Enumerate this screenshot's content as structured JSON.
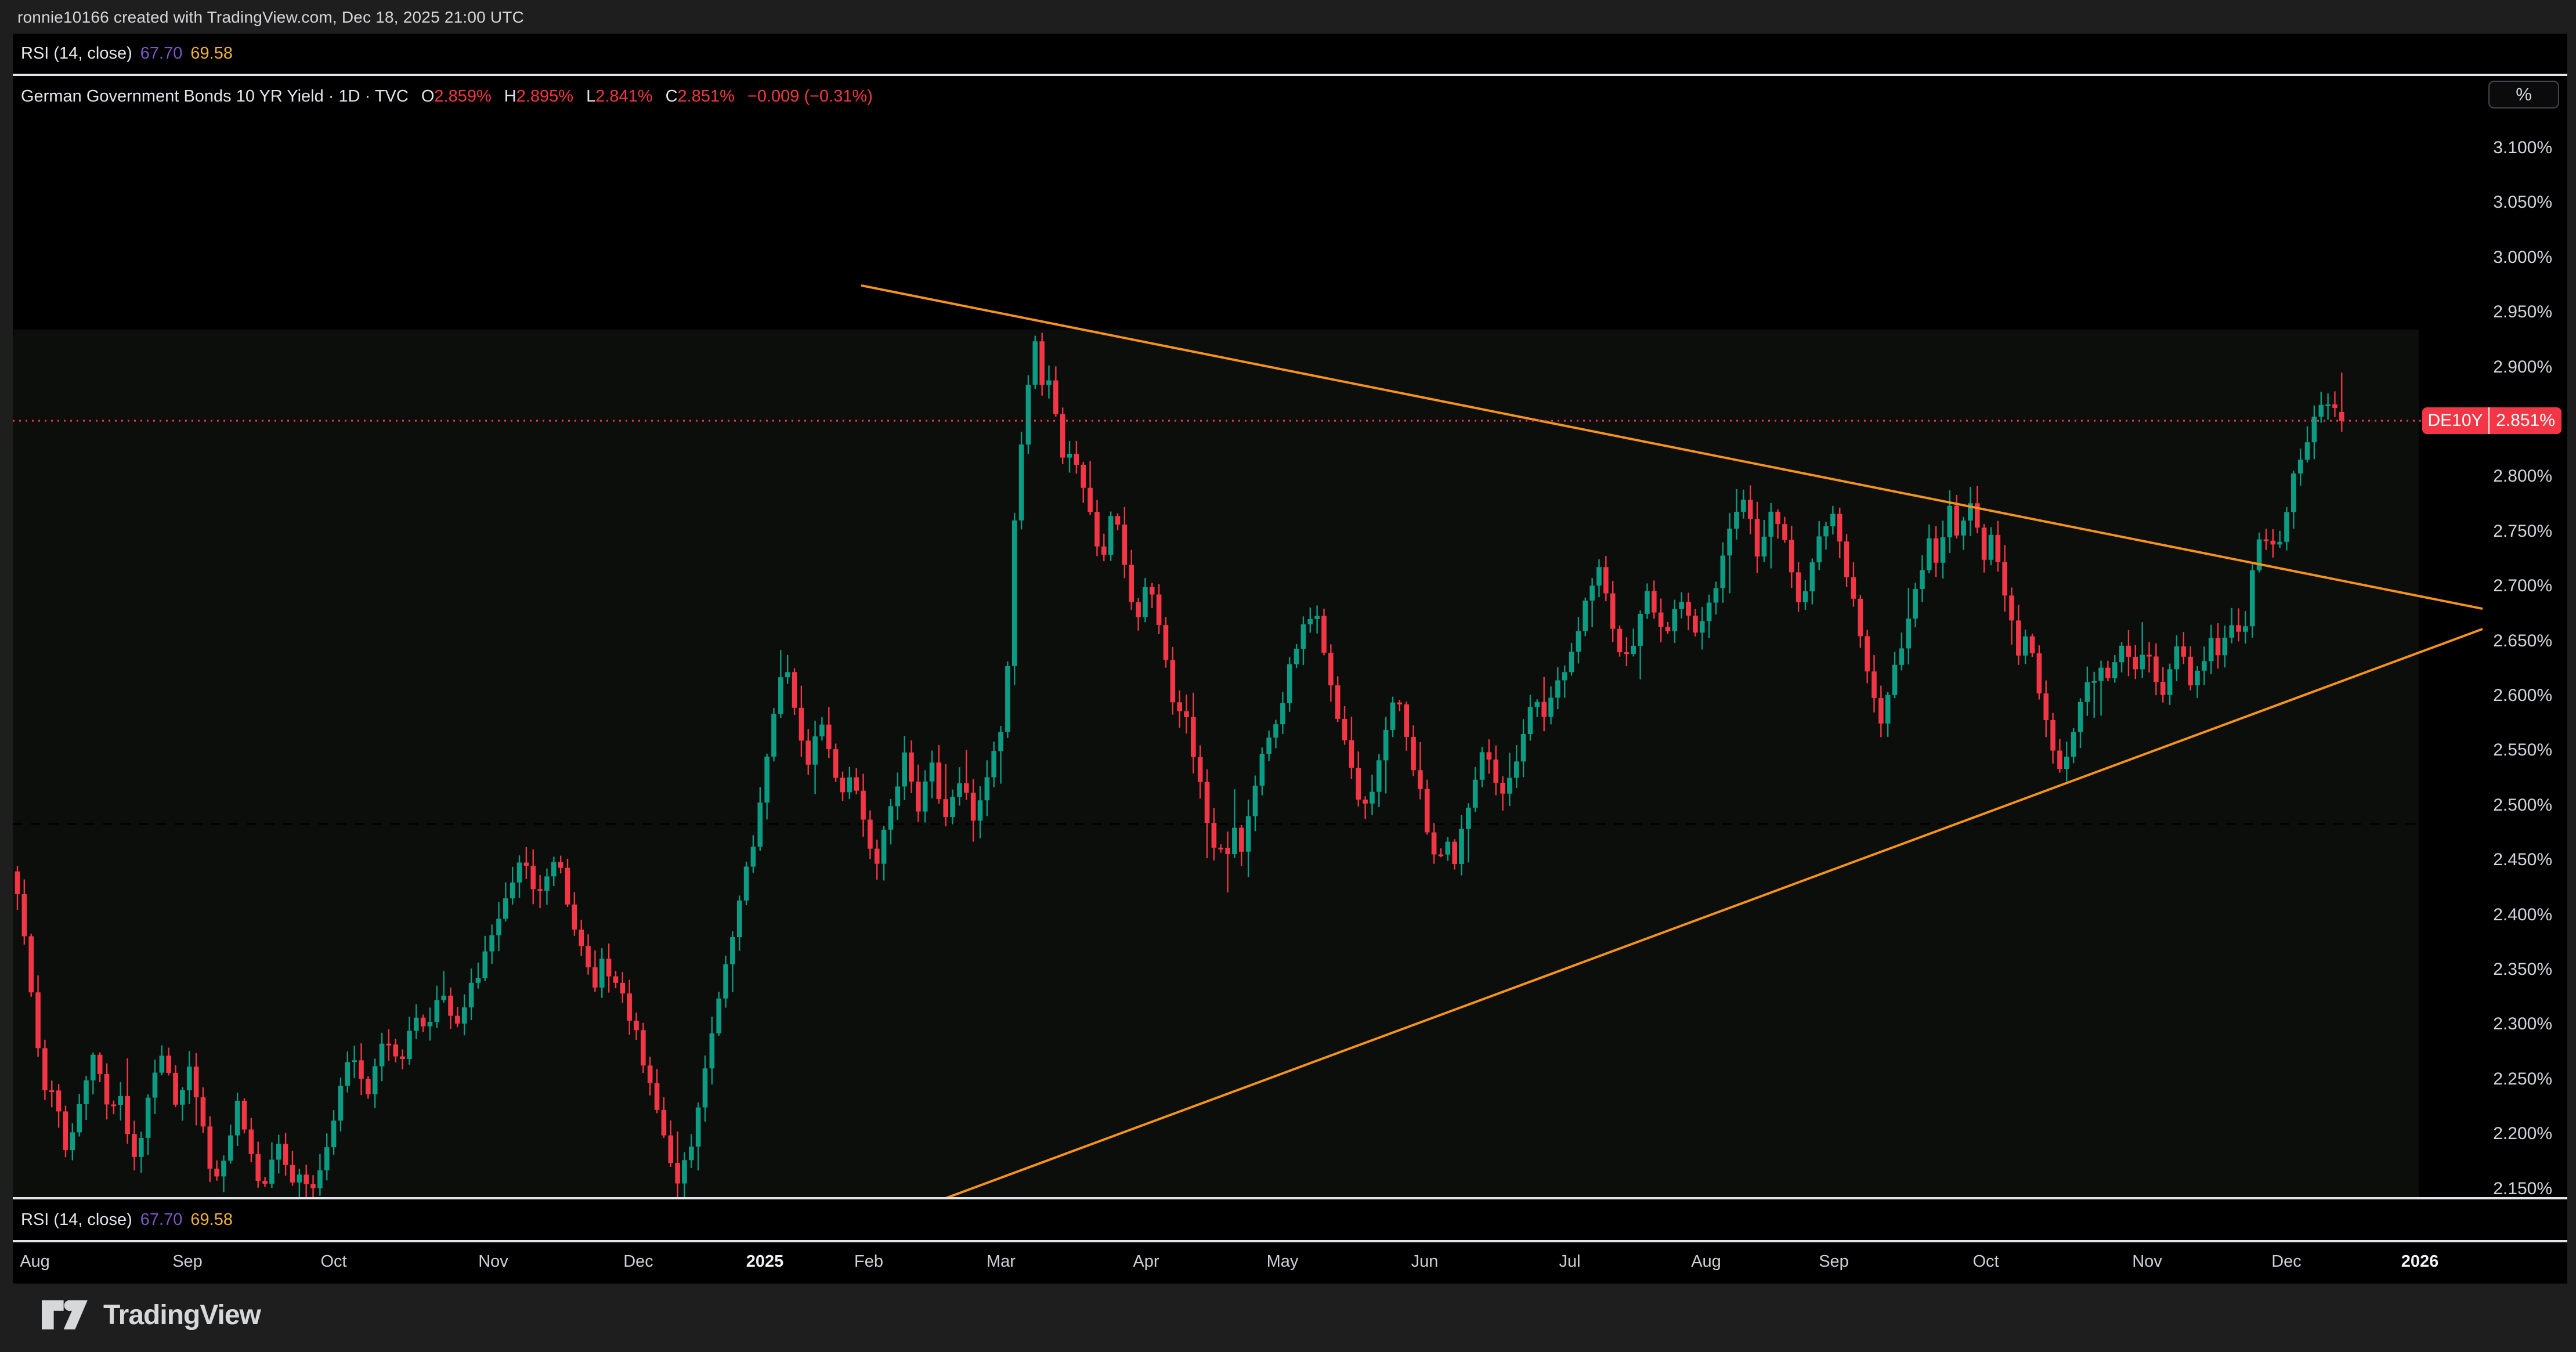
{
  "header": {
    "byline": "ronnie10166 created with TradingView.com, Dec 18, 2025 21:00 UTC"
  },
  "rsi": {
    "label": "RSI (14, close)",
    "value1": "67.70",
    "value2": "69.58"
  },
  "legend": {
    "title": "German Government Bonds 10 YR Yield · 1D · TVC",
    "label_o": "O",
    "open": "2.859%",
    "label_h": "H",
    "high": "2.895%",
    "label_l": "L",
    "low": "2.841%",
    "label_c": "C",
    "close": "2.851%",
    "change": "−0.009 (−0.31%)"
  },
  "price_label": {
    "symbol": "DE10Y",
    "value": "2.851%"
  },
  "y_axis": {
    "unit": "%",
    "ticks": [
      "3.100%",
      "3.050%",
      "3.000%",
      "2.950%",
      "2.900%",
      "2.800%",
      "2.750%",
      "2.700%",
      "2.650%",
      "2.600%",
      "2.550%",
      "2.500%",
      "2.450%",
      "2.400%",
      "2.350%",
      "2.300%",
      "2.250%",
      "2.200%",
      "2.150%"
    ]
  },
  "footer": {
    "logo_text": "TradingView"
  },
  "chart_data": {
    "type": "candlestick",
    "title": "German Government Bonds 10 YR Yield",
    "interval": "1D",
    "exchange": "TVC",
    "unit": "%",
    "ylim": [
      2.135,
      3.163
    ],
    "grid": false,
    "legend_position": "top-left",
    "last_bar": {
      "open": 2.859,
      "high": 2.895,
      "low": 2.841,
      "close": 2.851,
      "change": -0.009,
      "change_pct": -0.31
    },
    "current_price": 2.851,
    "dashed_level": 2.483,
    "colors": {
      "up": "#0c9c83",
      "down": "#f23645",
      "trendline": "#f7931a",
      "price_line": "#f23645",
      "rsi_value": "#7e57c2",
      "rsi_ma_value": "#f0b232",
      "badge_bg": "#f23645",
      "pane_bg": "#000000",
      "band_bg": "#0b0e0b",
      "frame_bg": "#1e1e1e"
    },
    "x_axis": {
      "labels": [
        {
          "t": "Aug",
          "x": 60
        },
        {
          "t": "Sep",
          "x": 323
        },
        {
          "t": "Oct",
          "x": 575
        },
        {
          "t": "Nov",
          "x": 850
        },
        {
          "t": "Dec",
          "x": 1100
        },
        {
          "t": "2025",
          "x": 1318,
          "year": true
        },
        {
          "t": "Feb",
          "x": 1497
        },
        {
          "t": "Mar",
          "x": 1725
        },
        {
          "t": "Apr",
          "x": 1975
        },
        {
          "t": "May",
          "x": 2210
        },
        {
          "t": "Jun",
          "x": 2455
        },
        {
          "t": "Jul",
          "x": 2705
        },
        {
          "t": "Aug",
          "x": 2940
        },
        {
          "t": "Sep",
          "x": 3160
        },
        {
          "t": "Oct",
          "x": 3422
        },
        {
          "t": "Nov",
          "x": 3700
        },
        {
          "t": "Dec",
          "x": 3940
        },
        {
          "t": "2026",
          "x": 4170,
          "year": true
        }
      ]
    },
    "trendlines": [
      {
        "x1": 1484,
        "p1": 2.9745,
        "x2": 4278,
        "p2": 2.6794
      },
      {
        "x1": 1616,
        "p1": 2.1387,
        "x2": 4278,
        "p2": 2.6609
      }
    ],
    "anchors": [
      [
        18,
        2.44
      ],
      [
        30,
        2.415
      ],
      [
        42,
        2.38
      ],
      [
        55,
        2.33
      ],
      [
        68,
        2.27
      ],
      [
        80,
        2.225
      ],
      [
        92,
        2.25
      ],
      [
        105,
        2.21
      ],
      [
        118,
        2.18
      ],
      [
        132,
        2.22
      ],
      [
        146,
        2.245
      ],
      [
        160,
        2.27
      ],
      [
        175,
        2.245
      ],
      [
        190,
        2.215
      ],
      [
        205,
        2.245
      ],
      [
        220,
        2.2
      ],
      [
        235,
        2.175
      ],
      [
        250,
        2.215
      ],
      [
        265,
        2.25
      ],
      [
        280,
        2.27
      ],
      [
        295,
        2.245
      ],
      [
        310,
        2.22
      ],
      [
        325,
        2.265
      ],
      [
        340,
        2.23
      ],
      [
        355,
        2.19
      ],
      [
        368,
        2.155
      ],
      [
        382,
        2.17
      ],
      [
        396,
        2.2
      ],
      [
        410,
        2.225
      ],
      [
        424,
        2.195
      ],
      [
        438,
        2.17
      ],
      [
        452,
        2.15
      ],
      [
        466,
        2.175
      ],
      [
        480,
        2.195
      ],
      [
        494,
        2.17
      ],
      [
        508,
        2.15
      ],
      [
        522,
        2.165
      ],
      [
        536,
        2.145
      ],
      [
        550,
        2.17
      ],
      [
        564,
        2.19
      ],
      [
        578,
        2.22
      ],
      [
        592,
        2.25
      ],
      [
        606,
        2.275
      ],
      [
        620,
        2.255
      ],
      [
        634,
        2.235
      ],
      [
        648,
        2.265
      ],
      [
        662,
        2.295
      ],
      [
        676,
        2.275
      ],
      [
        690,
        2.255
      ],
      [
        704,
        2.285
      ],
      [
        718,
        2.31
      ],
      [
        732,
        2.29
      ],
      [
        746,
        2.315
      ],
      [
        760,
        2.33
      ],
      [
        774,
        2.31
      ],
      [
        788,
        2.295
      ],
      [
        802,
        2.32
      ],
      [
        816,
        2.34
      ],
      [
        830,
        2.355
      ],
      [
        844,
        2.375
      ],
      [
        858,
        2.4
      ],
      [
        872,
        2.42
      ],
      [
        886,
        2.44
      ],
      [
        900,
        2.455
      ],
      [
        914,
        2.435
      ],
      [
        928,
        2.415
      ],
      [
        942,
        2.44
      ],
      [
        956,
        2.455
      ],
      [
        970,
        2.43
      ],
      [
        984,
        2.4
      ],
      [
        998,
        2.375
      ],
      [
        1012,
        2.35
      ],
      [
        1026,
        2.335
      ],
      [
        1040,
        2.36
      ],
      [
        1054,
        2.345
      ],
      [
        1068,
        2.33
      ],
      [
        1082,
        2.315
      ],
      [
        1096,
        2.29
      ],
      [
        1110,
        2.265
      ],
      [
        1124,
        2.235
      ],
      [
        1138,
        2.205
      ],
      [
        1152,
        2.175
      ],
      [
        1166,
        2.15
      ],
      [
        1180,
        2.17
      ],
      [
        1194,
        2.2
      ],
      [
        1208,
        2.24
      ],
      [
        1222,
        2.28
      ],
      [
        1236,
        2.315
      ],
      [
        1250,
        2.35
      ],
      [
        1264,
        2.385
      ],
      [
        1278,
        2.42
      ],
      [
        1292,
        2.45
      ],
      [
        1306,
        2.485
      ],
      [
        1318,
        2.53
      ],
      [
        1330,
        2.575
      ],
      [
        1342,
        2.615
      ],
      [
        1354,
        2.635
      ],
      [
        1366,
        2.6
      ],
      [
        1378,
        2.565
      ],
      [
        1390,
        2.535
      ],
      [
        1402,
        2.555
      ],
      [
        1414,
        2.575
      ],
      [
        1426,
        2.555
      ],
      [
        1438,
        2.53
      ],
      [
        1450,
        2.51
      ],
      [
        1462,
        2.53
      ],
      [
        1474,
        2.515
      ],
      [
        1486,
        2.49
      ],
      [
        1498,
        2.465
      ],
      [
        1510,
        2.445
      ],
      [
        1522,
        2.47
      ],
      [
        1534,
        2.495
      ],
      [
        1546,
        2.52
      ],
      [
        1558,
        2.545
      ],
      [
        1570,
        2.52
      ],
      [
        1582,
        2.495
      ],
      [
        1594,
        2.515
      ],
      [
        1606,
        2.535
      ],
      [
        1618,
        2.51
      ],
      [
        1630,
        2.485
      ],
      [
        1642,
        2.505
      ],
      [
        1654,
        2.525
      ],
      [
        1666,
        2.505
      ],
      [
        1678,
        2.485
      ],
      [
        1690,
        2.505
      ],
      [
        1702,
        2.525
      ],
      [
        1714,
        2.545
      ],
      [
        1726,
        2.565
      ],
      [
        1736,
        2.615
      ],
      [
        1744,
        2.72
      ],
      [
        1752,
        2.8
      ],
      [
        1760,
        2.83
      ],
      [
        1768,
        2.865
      ],
      [
        1776,
        2.895
      ],
      [
        1784,
        2.925
      ],
      [
        1792,
        2.9
      ],
      [
        1800,
        2.875
      ],
      [
        1808,
        2.89
      ],
      [
        1816,
        2.87
      ],
      [
        1824,
        2.84
      ],
      [
        1832,
        2.815
      ],
      [
        1840,
        2.835
      ],
      [
        1848,
        2.8
      ],
      [
        1858,
        2.815
      ],
      [
        1868,
        2.79
      ],
      [
        1878,
        2.765
      ],
      [
        1888,
        2.74
      ],
      [
        1898,
        2.715
      ],
      [
        1908,
        2.745
      ],
      [
        1918,
        2.77
      ],
      [
        1928,
        2.745
      ],
      [
        1938,
        2.715
      ],
      [
        1948,
        2.685
      ],
      [
        1958,
        2.66
      ],
      [
        1968,
        2.685
      ],
      [
        1978,
        2.71
      ],
      [
        1988,
        2.69
      ],
      [
        1998,
        2.665
      ],
      [
        2008,
        2.635
      ],
      [
        2018,
        2.6
      ],
      [
        2028,
        2.575
      ],
      [
        2038,
        2.6
      ],
      [
        2048,
        2.57
      ],
      [
        2058,
        2.545
      ],
      [
        2068,
        2.52
      ],
      [
        2078,
        2.49
      ],
      [
        2088,
        2.465
      ],
      [
        2098,
        2.445
      ],
      [
        2108,
        2.47
      ],
      [
        2118,
        2.45
      ],
      [
        2128,
        2.475
      ],
      [
        2138,
        2.455
      ],
      [
        2148,
        2.48
      ],
      [
        2158,
        2.51
      ],
      [
        2170,
        2.535
      ],
      [
        2184,
        2.555
      ],
      [
        2198,
        2.575
      ],
      [
        2212,
        2.6
      ],
      [
        2226,
        2.63
      ],
      [
        2240,
        2.655
      ],
      [
        2254,
        2.67
      ],
      [
        2266,
        2.675
      ],
      [
        2280,
        2.645
      ],
      [
        2294,
        2.61
      ],
      [
        2308,
        2.575
      ],
      [
        2322,
        2.545
      ],
      [
        2336,
        2.515
      ],
      [
        2350,
        2.49
      ],
      [
        2364,
        2.515
      ],
      [
        2378,
        2.545
      ],
      [
        2392,
        2.575
      ],
      [
        2406,
        2.6
      ],
      [
        2420,
        2.57
      ],
      [
        2434,
        2.54
      ],
      [
        2448,
        2.51
      ],
      [
        2462,
        2.475
      ],
      [
        2476,
        2.445
      ],
      [
        2490,
        2.47
      ],
      [
        2504,
        2.445
      ],
      [
        2518,
        2.475
      ],
      [
        2532,
        2.505
      ],
      [
        2546,
        2.53
      ],
      [
        2560,
        2.55
      ],
      [
        2574,
        2.525
      ],
      [
        2588,
        2.505
      ],
      [
        2602,
        2.53
      ],
      [
        2616,
        2.55
      ],
      [
        2630,
        2.575
      ],
      [
        2644,
        2.6
      ],
      [
        2658,
        2.58
      ],
      [
        2672,
        2.6
      ],
      [
        2686,
        2.615
      ],
      [
        2700,
        2.63
      ],
      [
        2714,
        2.65
      ],
      [
        2728,
        2.675
      ],
      [
        2742,
        2.7
      ],
      [
        2756,
        2.715
      ],
      [
        2770,
        2.685
      ],
      [
        2784,
        2.655
      ],
      [
        2798,
        2.625
      ],
      [
        2812,
        2.645
      ],
      [
        2826,
        2.67
      ],
      [
        2840,
        2.695
      ],
      [
        2854,
        2.67
      ],
      [
        2868,
        2.648
      ],
      [
        2882,
        2.67
      ],
      [
        2896,
        2.692
      ],
      [
        2910,
        2.67
      ],
      [
        2924,
        2.652
      ],
      [
        2936,
        2.665
      ],
      [
        2948,
        2.685
      ],
      [
        2962,
        2.71
      ],
      [
        2976,
        2.74
      ],
      [
        2990,
        2.77
      ],
      [
        3002,
        2.785
      ],
      [
        3016,
        2.755
      ],
      [
        3030,
        2.725
      ],
      [
        3044,
        2.75
      ],
      [
        3058,
        2.775
      ],
      [
        3072,
        2.745
      ],
      [
        3086,
        2.71
      ],
      [
        3100,
        2.685
      ],
      [
        3114,
        2.705
      ],
      [
        3128,
        2.73
      ],
      [
        3142,
        2.755
      ],
      [
        3156,
        2.775
      ],
      [
        3168,
        2.75
      ],
      [
        3180,
        2.72
      ],
      [
        3192,
        2.69
      ],
      [
        3204,
        2.66
      ],
      [
        3216,
        2.625
      ],
      [
        3228,
        2.595
      ],
      [
        3240,
        2.57
      ],
      [
        3252,
        2.595
      ],
      [
        3264,
        2.62
      ],
      [
        3276,
        2.645
      ],
      [
        3288,
        2.67
      ],
      [
        3300,
        2.695
      ],
      [
        3312,
        2.72
      ],
      [
        3324,
        2.745
      ],
      [
        3336,
        2.725
      ],
      [
        3348,
        2.75
      ],
      [
        3360,
        2.77
      ],
      [
        3372,
        2.745
      ],
      [
        3384,
        2.755
      ],
      [
        3396,
        2.775
      ],
      [
        3408,
        2.75
      ],
      [
        3420,
        2.725
      ],
      [
        3432,
        2.745
      ],
      [
        3444,
        2.72
      ],
      [
        3456,
        2.69
      ],
      [
        3468,
        2.66
      ],
      [
        3480,
        2.635
      ],
      [
        3492,
        2.66
      ],
      [
        3504,
        2.63
      ],
      [
        3516,
        2.6
      ],
      [
        3528,
        2.575
      ],
      [
        3540,
        2.55
      ],
      [
        3552,
        2.53
      ],
      [
        3564,
        2.55
      ],
      [
        3576,
        2.575
      ],
      [
        3588,
        2.6
      ],
      [
        3600,
        2.625
      ],
      [
        3612,
        2.605
      ],
      [
        3624,
        2.63
      ],
      [
        3636,
        2.615
      ],
      [
        3648,
        2.635
      ],
      [
        3660,
        2.655
      ],
      [
        3672,
        2.635
      ],
      [
        3684,
        2.615
      ],
      [
        3696,
        2.64
      ],
      [
        3710,
        2.62
      ],
      [
        3724,
        2.6
      ],
      [
        3738,
        2.625
      ],
      [
        3752,
        2.65
      ],
      [
        3766,
        2.63
      ],
      [
        3780,
        2.605
      ],
      [
        3794,
        2.63
      ],
      [
        3808,
        2.655
      ],
      [
        3822,
        2.635
      ],
      [
        3836,
        2.655
      ],
      [
        3850,
        2.675
      ],
      [
        3862,
        2.65
      ],
      [
        3874,
        2.665
      ],
      [
        3886,
        2.745
      ],
      [
        3898,
        2.73
      ],
      [
        3910,
        2.75
      ],
      [
        3922,
        2.735
      ],
      [
        3934,
        2.755
      ],
      [
        3946,
        2.78
      ],
      [
        3958,
        2.825
      ],
      [
        3970,
        2.81
      ],
      [
        3982,
        2.84
      ],
      [
        3994,
        2.87
      ],
      [
        4006,
        2.858
      ],
      [
        4018,
        2.875
      ],
      [
        4030,
        2.848
      ],
      [
        4042,
        2.851
      ]
    ]
  }
}
